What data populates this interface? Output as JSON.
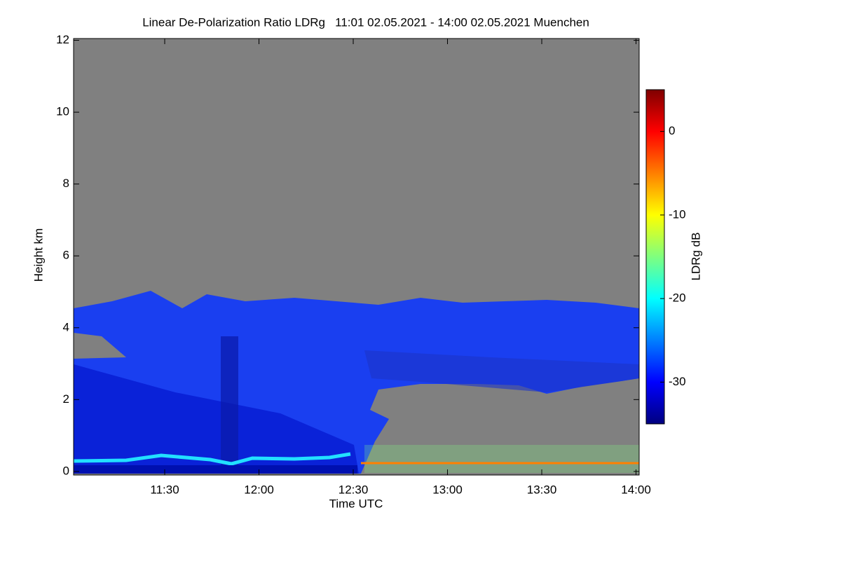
{
  "chart_data": {
    "type": "heatmap",
    "title": "Linear De-Polarization Ratio LDRg   11:01 02.05.2021 - 14:00 02.05.2021 Muenchen",
    "xlabel": "Time UTC",
    "ylabel": "Height km",
    "colorbar_label": "LDRg dB",
    "xlim": [
      661,
      841
    ],
    "xticks": [
      {
        "value": 690,
        "label": "11:30"
      },
      {
        "value": 720,
        "label": "12:00"
      },
      {
        "value": 750,
        "label": "12:30"
      },
      {
        "value": 780,
        "label": "13:00"
      },
      {
        "value": 810,
        "label": "13:30"
      },
      {
        "value": 840,
        "label": "14:00"
      }
    ],
    "ylim": [
      -0.1,
      12.05
    ],
    "yticks": [
      0,
      2,
      4,
      6,
      8,
      10,
      12
    ],
    "clim": [
      -35,
      5
    ],
    "cticks": [
      -30,
      -20,
      -10,
      0
    ],
    "colormap": [
      "#00007f",
      "#0000ff",
      "#007fff",
      "#00ffff",
      "#7fff7f",
      "#ffff00",
      "#ff7f00",
      "#ff0000",
      "#7f0000"
    ]
  }
}
